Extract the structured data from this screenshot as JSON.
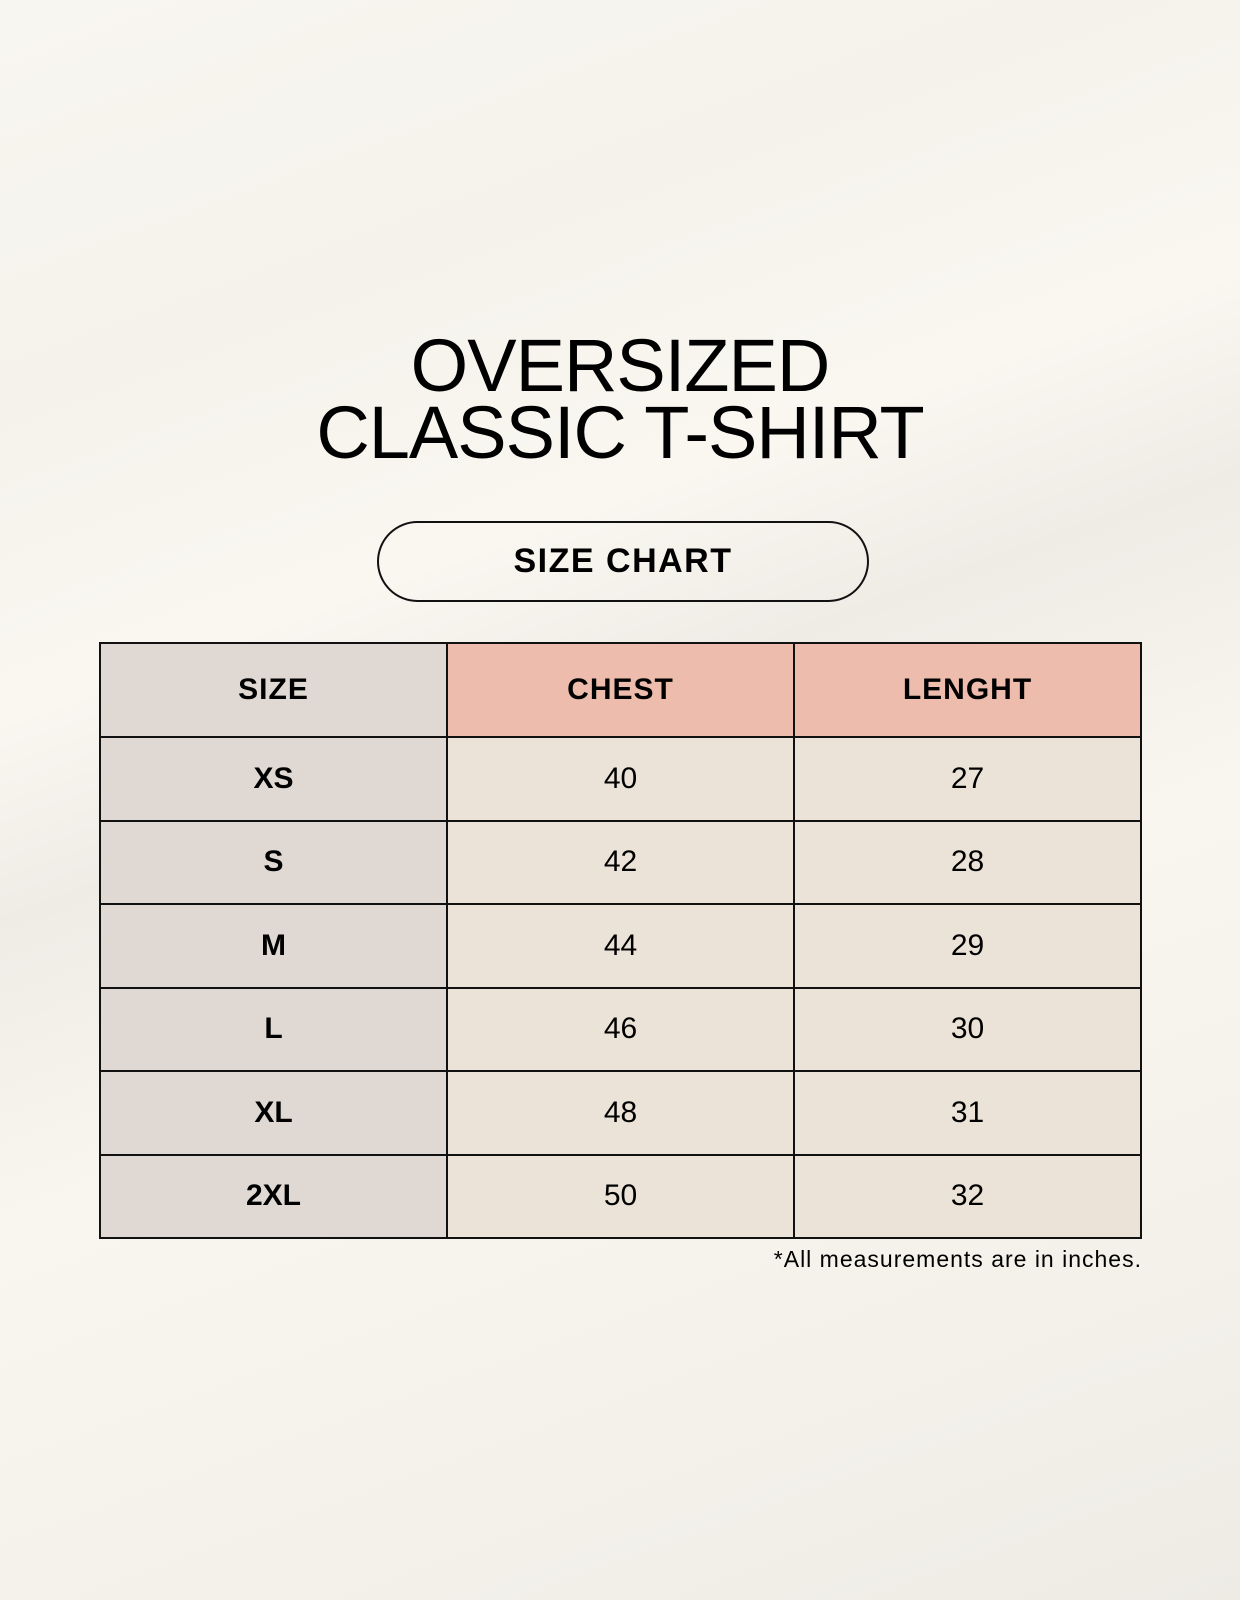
{
  "title": {
    "line1": "OVERSIZED",
    "line2": "CLASSIC T-SHIRT"
  },
  "badge": "SIZE CHART",
  "colors": {
    "size_column": "#e0d9d3",
    "header_accent": "#edbcad",
    "cell": "#ebe3d8"
  },
  "table": {
    "headers": [
      "SIZE",
      "CHEST",
      "LENGHT"
    ],
    "rows": [
      [
        "XS",
        "40",
        "27"
      ],
      [
        "S",
        "42",
        "28"
      ],
      [
        "M",
        "44",
        "29"
      ],
      [
        "L",
        "46",
        "30"
      ],
      [
        "XL",
        "48",
        "31"
      ],
      [
        "2XL",
        "50",
        "32"
      ]
    ]
  },
  "footnote": "*All measurements are in inches."
}
